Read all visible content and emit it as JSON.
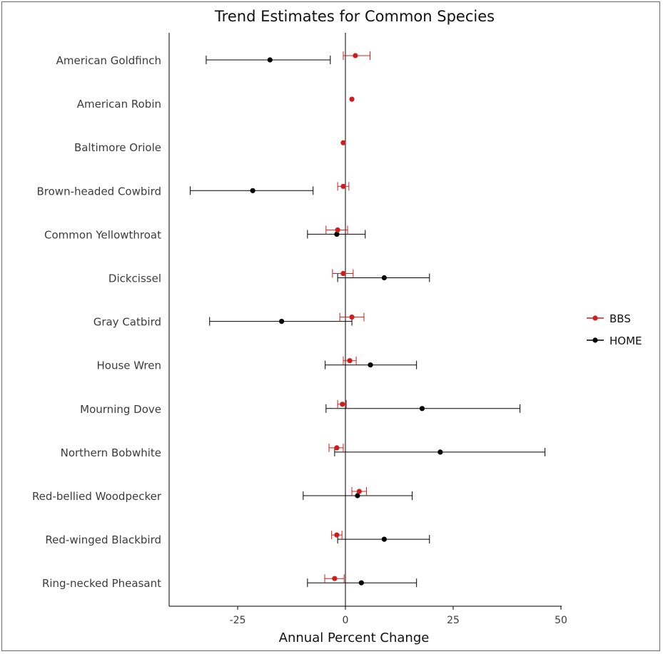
{
  "chart_data": {
    "type": "scatter",
    "title": "Trend Estimates for Common Species",
    "xlabel": "Annual Percent Change",
    "ylabel": "",
    "xlim": [
      -40,
      50
    ],
    "xticks": [
      -25,
      0,
      25,
      50
    ],
    "xtick_labels": [
      "-25",
      "0",
      "25",
      "50"
    ],
    "reference_line_x": 0,
    "legend_position": "right",
    "categories": [
      "American Goldfinch",
      "American Robin",
      "Baltimore Oriole",
      "Brown-headed Cowbird",
      "Common Yellowthroat",
      "Dickcissel",
      "Gray Catbird",
      "House Wren",
      "Mourning Dove",
      "Northern Bobwhite",
      "Red-bellied Woodpecker",
      "Red-winged Blackbird",
      "Ring-necked Pheasant"
    ],
    "series": [
      {
        "name": "BBS",
        "color": "#d01c1c",
        "values": [
          2.3,
          1.5,
          -0.5,
          -0.5,
          -1.8,
          -0.5,
          1.5,
          1.0,
          -0.7,
          -2.0,
          3.2,
          -2.0,
          -2.5
        ],
        "lower": [
          -0.5,
          null,
          null,
          -1.8,
          -4.5,
          -3.0,
          -1.3,
          -0.5,
          -1.8,
          -3.8,
          1.5,
          -3.2,
          -4.8
        ],
        "upper": [
          5.7,
          null,
          null,
          0.8,
          0.5,
          1.8,
          4.3,
          2.5,
          0.2,
          -0.5,
          4.9,
          -0.8,
          -0.3
        ]
      },
      {
        "name": "HOME",
        "color": "#000000",
        "values": [
          -17.5,
          null,
          null,
          -21.5,
          -2.0,
          9.0,
          -14.8,
          5.8,
          17.8,
          22.0,
          2.8,
          9.0,
          3.7
        ],
        "lower": [
          -32.3,
          null,
          null,
          -36.0,
          -8.8,
          -1.8,
          -31.5,
          -4.7,
          -4.5,
          -2.5,
          -9.8,
          -1.8,
          -8.8
        ],
        "upper": [
          -3.5,
          null,
          null,
          -7.5,
          4.6,
          19.5,
          1.5,
          16.5,
          40.5,
          46.3,
          15.5,
          19.5,
          16.5
        ]
      }
    ]
  }
}
